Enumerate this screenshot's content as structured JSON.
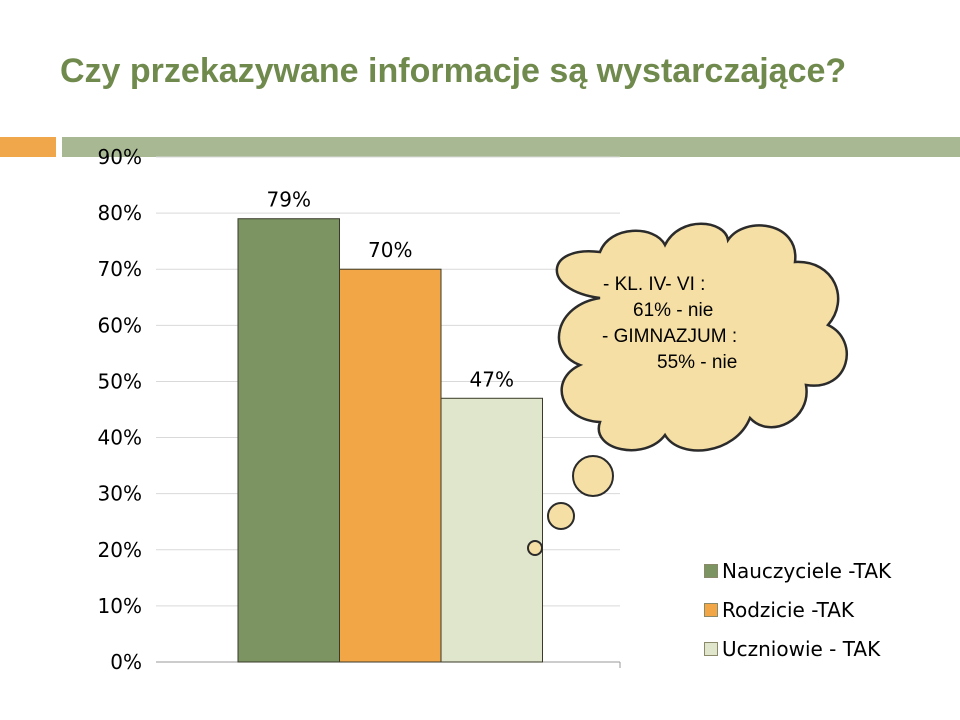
{
  "title": "Czy przekazywane informacje są wystarczające?",
  "colors": {
    "title": "#6f8a4c",
    "accent_orange": "#f0a64b",
    "accent_green": "#a8b893",
    "cloud_fill": "#f5dfa5",
    "cloud_stroke": "#2b2b2b"
  },
  "chart_data": {
    "type": "bar",
    "categories": [
      "Nauczyciele -TAK",
      "Rodzicie -TAK",
      "Uczniowie - TAK"
    ],
    "values": [
      79,
      70,
      47
    ],
    "value_labels": [
      "79%",
      "70%",
      "47%"
    ],
    "colors": [
      "#7b9462",
      "#f2a646",
      "#dfe6cc"
    ],
    "ylim": [
      0,
      90
    ],
    "y_ticks": [
      "0%",
      "10%",
      "20%",
      "30%",
      "40%",
      "50%",
      "60%",
      "70%",
      "80%",
      "90%"
    ],
    "grid": true,
    "legend": "right",
    "legend_entries": [
      "Nauczyciele -TAK",
      "Rodzicie -TAK",
      "Uczniowie - TAK"
    ]
  },
  "callout": {
    "lines": [
      "-   KL. IV- VI :",
      "61% - nie",
      "- GIMNAZJUM :",
      "55% - nie"
    ]
  }
}
